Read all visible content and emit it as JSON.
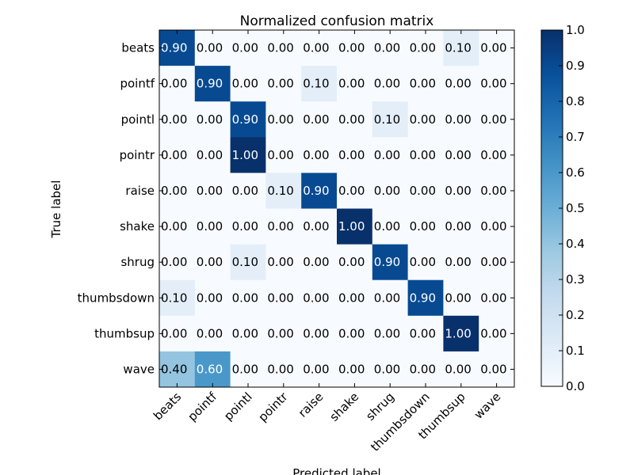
{
  "chart_data": {
    "type": "heatmap",
    "title": "Normalized confusion matrix",
    "xlabel": "Predicted label",
    "ylabel": "True label",
    "x_categories": [
      "beats",
      "pointf",
      "pointl",
      "pointr",
      "raise",
      "shake",
      "shrug",
      "thumbsdown",
      "thumbsup",
      "wave"
    ],
    "y_categories": [
      "beats",
      "pointf",
      "pointl",
      "pointr",
      "raise",
      "shake",
      "shrug",
      "thumbsdown",
      "thumbsup",
      "wave"
    ],
    "values": [
      [
        0.9,
        0.0,
        0.0,
        0.0,
        0.0,
        0.0,
        0.0,
        0.0,
        0.1,
        0.0
      ],
      [
        0.0,
        0.9,
        0.0,
        0.0,
        0.1,
        0.0,
        0.0,
        0.0,
        0.0,
        0.0
      ],
      [
        0.0,
        0.0,
        0.9,
        0.0,
        0.0,
        0.0,
        0.1,
        0.0,
        0.0,
        0.0
      ],
      [
        0.0,
        0.0,
        1.0,
        0.0,
        0.0,
        0.0,
        0.0,
        0.0,
        0.0,
        0.0
      ],
      [
        0.0,
        0.0,
        0.0,
        0.1,
        0.9,
        0.0,
        0.0,
        0.0,
        0.0,
        0.0
      ],
      [
        0.0,
        0.0,
        0.0,
        0.0,
        0.0,
        1.0,
        0.0,
        0.0,
        0.0,
        0.0
      ],
      [
        0.0,
        0.0,
        0.1,
        0.0,
        0.0,
        0.0,
        0.9,
        0.0,
        0.0,
        0.0
      ],
      [
        0.1,
        0.0,
        0.0,
        0.0,
        0.0,
        0.0,
        0.0,
        0.9,
        0.0,
        0.0
      ],
      [
        0.0,
        0.0,
        0.0,
        0.0,
        0.0,
        0.0,
        0.0,
        0.0,
        1.0,
        0.0
      ],
      [
        0.4,
        0.6,
        0.0,
        0.0,
        0.0,
        0.0,
        0.0,
        0.0,
        0.0,
        0.0
      ]
    ],
    "value_format_decimals": 2,
    "colormap": "Blues",
    "colorbar": {
      "range": [
        0.0,
        1.0
      ],
      "ticks": [
        "0.0",
        "0.1",
        "0.2",
        "0.3",
        "0.4",
        "0.5",
        "0.6",
        "0.7",
        "0.8",
        "0.9",
        "1.0"
      ]
    },
    "grid": false,
    "colors": {
      "low": "#f7fbff",
      "high": "#08306b",
      "text_dark": "#000000",
      "text_light": "#ffffff"
    }
  }
}
